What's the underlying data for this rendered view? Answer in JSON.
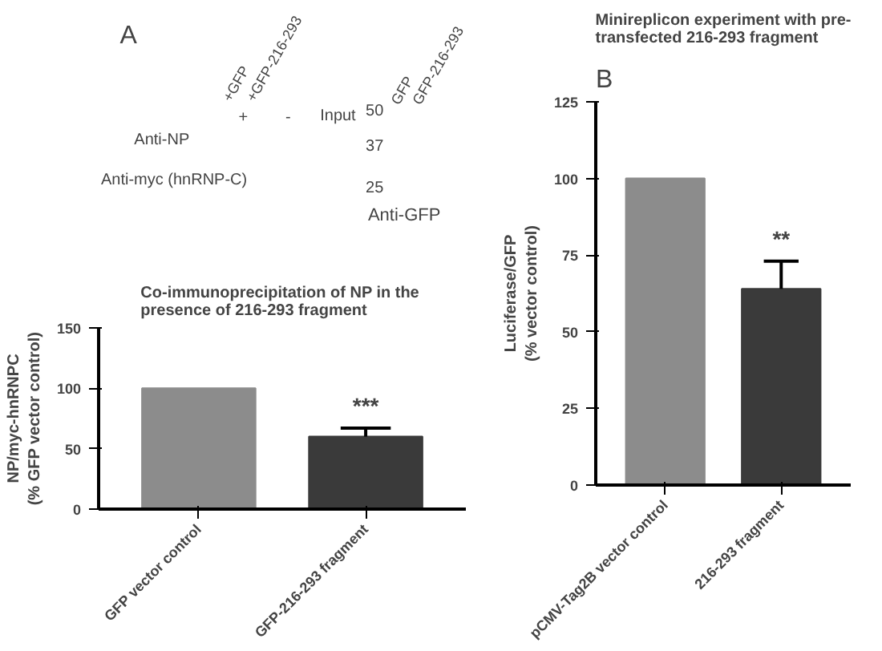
{
  "chart_data": [
    {
      "type": "other",
      "annotations": [
        "A",
        "+GFP",
        "+GFP-216-293",
        "+",
        "-",
        "Input",
        "Anti-NP",
        "Anti-myc (hnRNP-C)",
        "50",
        "37",
        "25",
        "GFP",
        "GFP-216-293",
        "Anti-GFP"
      ]
    },
    {
      "type": "bar",
      "title": "Co-immunoprecipitation of  NP in the\npresence of 216-293 fragment",
      "ylabel": "NP/myc-hnRNPC\n(% GFP vector control)",
      "categories": [
        "GFP vector control",
        "GFP-216-293 fragment"
      ],
      "values": [
        100,
        60
      ],
      "errors": [
        null,
        7
      ],
      "colors": [
        "#8c8c8c",
        "#3a3a3a"
      ],
      "ylim": [
        0,
        150
      ],
      "yticks": [
        0,
        50,
        100,
        150
      ],
      "annotations": [
        "***"
      ]
    },
    {
      "type": "bar",
      "title": "Minireplicon experiment with pre-\ntransfected 216-293 fragment",
      "ylabel": "Luciferase/GFP\n(% vector control)",
      "categories": [
        "pCMV-Tag2B vector control",
        "216-293 fragment"
      ],
      "values": [
        100,
        64
      ],
      "errors": [
        null,
        9
      ],
      "colors": [
        "#8c8c8c",
        "#3a3a3a"
      ],
      "ylim": [
        0,
        125
      ],
      "yticks": [
        0,
        25,
        50,
        75,
        100,
        125
      ],
      "annotations": [
        "B",
        "**"
      ]
    }
  ]
}
